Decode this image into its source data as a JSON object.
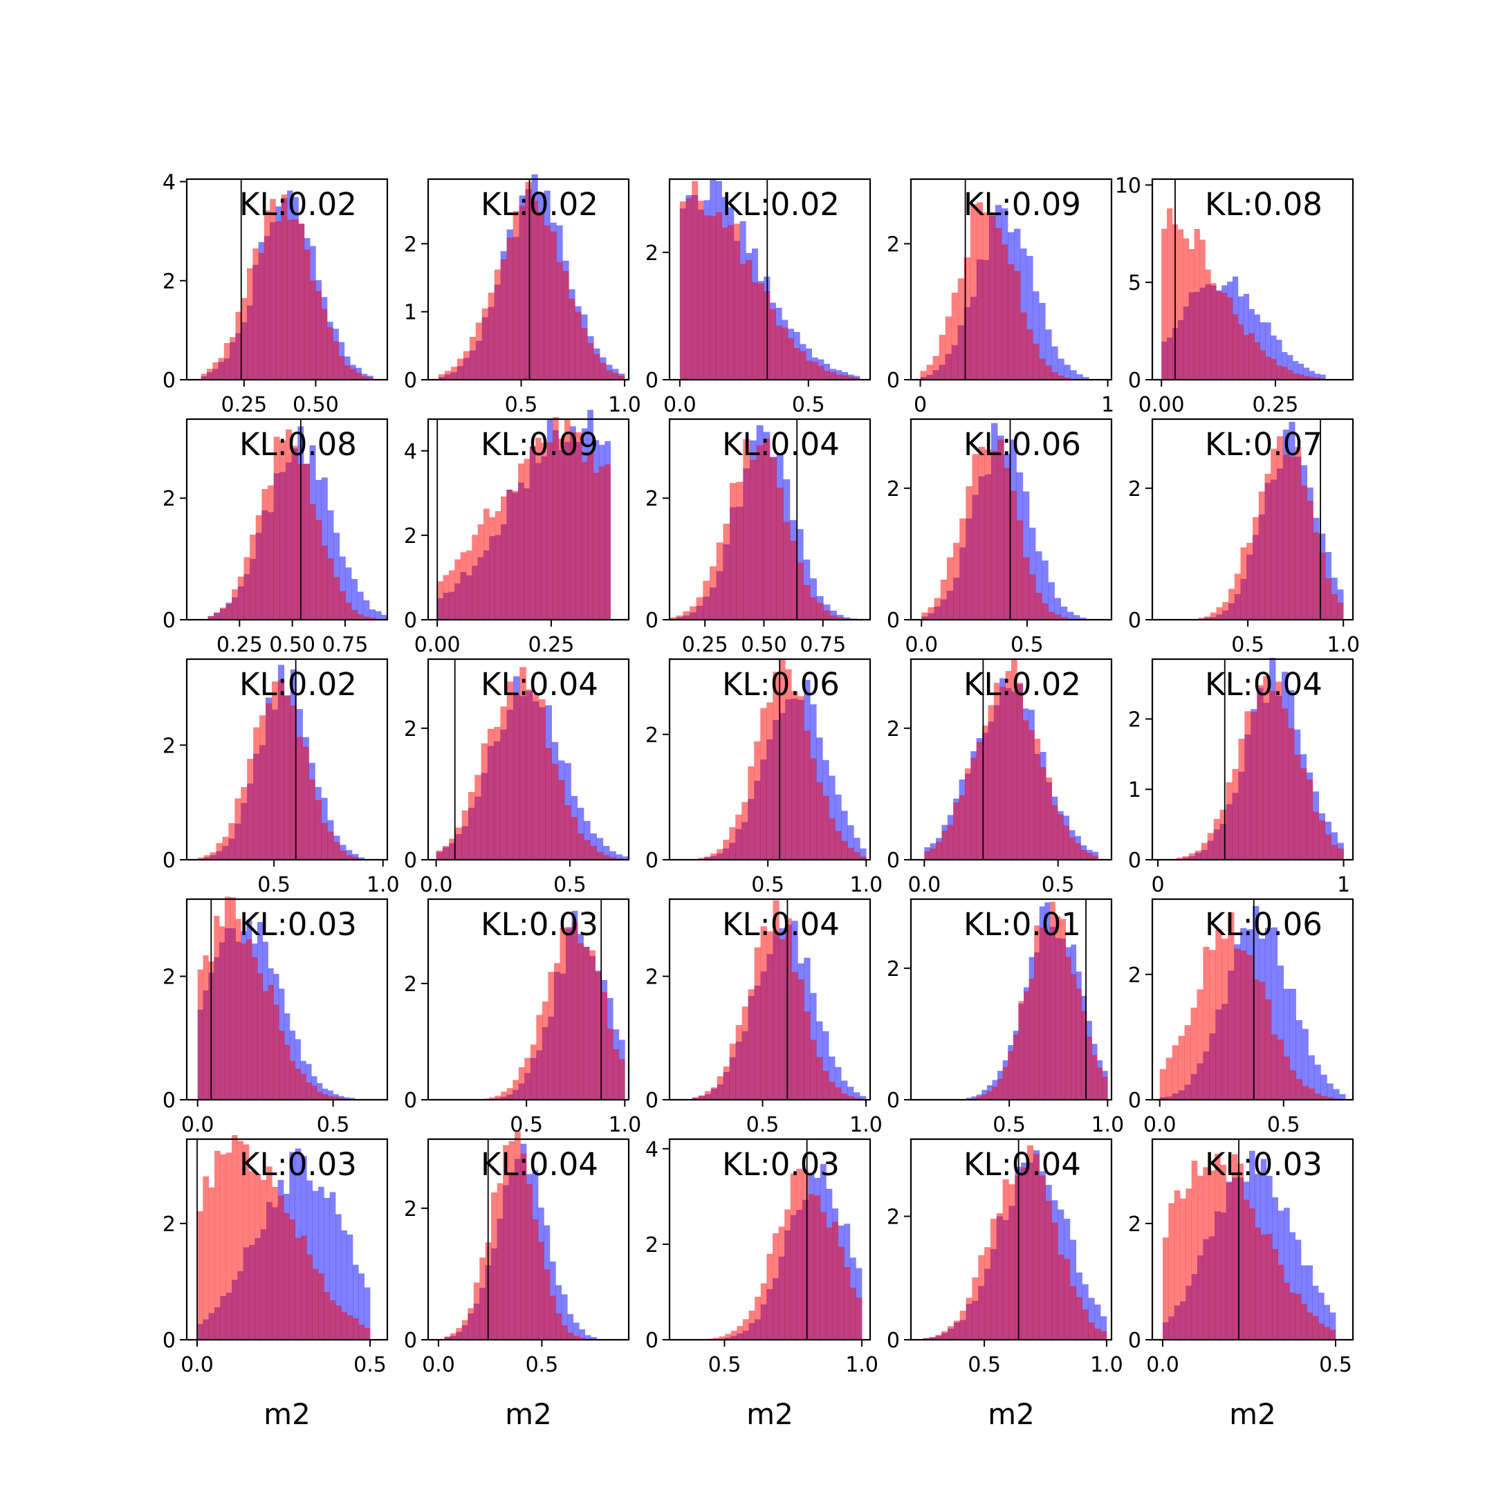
{
  "colors": {
    "blue": "#0000ff",
    "red": "#ff0000",
    "axis": "#000000"
  },
  "bar_opacity": 0.5,
  "chart_data": [
    {
      "type": "histogram",
      "xlabel": "",
      "annotation": "KL:0.02",
      "xlim": [
        0.05,
        0.75
      ],
      "ylim": [
        0,
        4.05
      ],
      "xticks": [
        0.25,
        0.5
      ],
      "xtick_labels": [
        "0.25",
        "0.50"
      ],
      "yticks": [
        0,
        2,
        4
      ],
      "ytick_labels": [
        "0",
        "2",
        "4"
      ],
      "vline": 0.24,
      "dist_blue": {
        "mu": 0.4,
        "sd": 0.105,
        "lo": 0.1,
        "hi": 0.7,
        "peak": 3.6
      },
      "dist_red": {
        "mu": 0.38,
        "sd": 0.105,
        "lo": 0.1,
        "hi": 0.7,
        "peak": 3.6
      }
    },
    {
      "type": "histogram",
      "xlabel": "",
      "annotation": "KL:0.02",
      "xlim": [
        0.05,
        1.02
      ],
      "ylim": [
        0,
        2.95
      ],
      "xticks": [
        0.5,
        1.0
      ],
      "xtick_labels": [
        "0.5",
        "1.0"
      ],
      "yticks": [
        0,
        1,
        2
      ],
      "ytick_labels": [
        "0",
        "1",
        "2"
      ],
      "vline": 0.54,
      "dist_blue": {
        "mu": 0.57,
        "sd": 0.16,
        "lo": 0.1,
        "hi": 1.0,
        "peak": 2.7
      },
      "dist_red": {
        "mu": 0.54,
        "sd": 0.16,
        "lo": 0.1,
        "hi": 1.0,
        "peak": 2.7
      }
    },
    {
      "type": "histogram",
      "xlabel": "",
      "annotation": "KL:0.02",
      "xlim": [
        -0.04,
        0.74
      ],
      "ylim": [
        0,
        3.15
      ],
      "xticks": [
        0.0,
        0.5
      ],
      "xtick_labels": [
        "0.0",
        "0.5"
      ],
      "yticks": [
        0,
        2
      ],
      "ytick_labels": [
        "0",
        "2"
      ],
      "vline": 0.34,
      "dist_blue": {
        "mu": 0.08,
        "sd": 0.22,
        "lo": 0.0,
        "hi": 0.7,
        "peak": 2.95
      },
      "dist_red": {
        "mu": 0.06,
        "sd": 0.21,
        "lo": 0.0,
        "hi": 0.7,
        "peak": 3.0
      }
    },
    {
      "type": "histogram",
      "xlabel": "",
      "annotation": "KL:0.09",
      "xlim": [
        -0.05,
        1.02
      ],
      "ylim": [
        0,
        2.95
      ],
      "xticks": [
        0,
        1
      ],
      "xtick_labels": [
        "0",
        "1"
      ],
      "yticks": [
        0,
        2
      ],
      "ytick_labels": [
        "0",
        "2"
      ],
      "vline": 0.24,
      "dist_blue": {
        "mu": 0.45,
        "sd": 0.15,
        "lo": 0.0,
        "hi": 1.0,
        "peak": 2.5
      },
      "dist_red": {
        "mu": 0.36,
        "sd": 0.14,
        "lo": 0.0,
        "hi": 1.0,
        "peak": 2.75
      }
    },
    {
      "type": "histogram",
      "xlabel": "",
      "annotation": "KL:0.08",
      "xlim": [
        -0.02,
        0.42
      ],
      "ylim": [
        0,
        10.3
      ],
      "xticks": [
        0.0,
        0.25
      ],
      "xtick_labels": [
        "0.00",
        "0.25"
      ],
      "yticks": [
        0,
        5,
        10
      ],
      "ytick_labels": [
        "0",
        "5",
        "10"
      ],
      "vline": 0.03,
      "dist_blue": {
        "mu": 0.13,
        "sd": 0.09,
        "lo": 0.0,
        "hi": 0.36,
        "peak": 5.2
      },
      "dist_red": {
        "mu": 0.02,
        "sd": 0.11,
        "lo": 0.0,
        "hi": 0.36,
        "peak": 8.0
      }
    },
    {
      "type": "histogram",
      "xlabel": "",
      "annotation": "KL:0.08",
      "xlim": [
        0.0,
        0.95
      ],
      "ylim": [
        0,
        3.3
      ],
      "xticks": [
        0.25,
        0.5,
        0.75
      ],
      "xtick_labels": [
        "0.25",
        "0.50",
        "0.75"
      ],
      "yticks": [
        0,
        2
      ],
      "ytick_labels": [
        "0",
        "2"
      ],
      "vline": 0.54,
      "dist_blue": {
        "mu": 0.53,
        "sd": 0.15,
        "lo": 0.1,
        "hi": 0.95,
        "peak": 2.95
      },
      "dist_red": {
        "mu": 0.48,
        "sd": 0.13,
        "lo": 0.1,
        "hi": 0.95,
        "peak": 3.0
      }
    },
    {
      "type": "histogram",
      "xlabel": "",
      "annotation": "KL:0.09",
      "xlim": [
        -0.02,
        0.42
      ],
      "ylim": [
        0,
        4.75
      ],
      "xticks": [
        0.0,
        0.25
      ],
      "xtick_labels": [
        "0.00",
        "0.25"
      ],
      "yticks": [
        0,
        2,
        4
      ],
      "ytick_labels": [
        "0",
        "2",
        "4"
      ],
      "vline": 0.0,
      "dist_blue": {
        "mu": 0.3,
        "sd": 0.14,
        "lo": 0.0,
        "hi": 0.38,
        "peak": 4.6
      },
      "dist_red": {
        "mu": 0.27,
        "sd": 0.15,
        "lo": 0.0,
        "hi": 0.38,
        "peak": 4.3
      }
    },
    {
      "type": "histogram",
      "xlabel": "",
      "annotation": "KL:0.04",
      "xlim": [
        0.1,
        0.95
      ],
      "ylim": [
        0,
        3.3
      ],
      "xticks": [
        0.25,
        0.5,
        0.75
      ],
      "xtick_labels": [
        "0.25",
        "0.50",
        "0.75"
      ],
      "yticks": [
        0,
        2
      ],
      "ytick_labels": [
        "0",
        "2"
      ],
      "vline": 0.64,
      "dist_blue": {
        "mu": 0.5,
        "sd": 0.12,
        "lo": 0.1,
        "hi": 0.95,
        "peak": 3.0
      },
      "dist_red": {
        "mu": 0.47,
        "sd": 0.12,
        "lo": 0.1,
        "hi": 0.95,
        "peak": 3.0
      }
    },
    {
      "type": "histogram",
      "xlabel": "",
      "annotation": "KL:0.06",
      "xlim": [
        -0.05,
        0.9
      ],
      "ylim": [
        0,
        3.05
      ],
      "xticks": [
        0.0,
        0.5
      ],
      "xtick_labels": [
        "0.0",
        "0.5"
      ],
      "yticks": [
        0,
        2
      ],
      "ytick_labels": [
        "0",
        "2"
      ],
      "vline": 0.42,
      "dist_blue": {
        "mu": 0.38,
        "sd": 0.13,
        "lo": 0.0,
        "hi": 0.9,
        "peak": 2.8
      },
      "dist_red": {
        "mu": 0.32,
        "sd": 0.12,
        "lo": 0.0,
        "hi": 0.9,
        "peak": 2.85
      }
    },
    {
      "type": "histogram",
      "xlabel": "",
      "annotation": "KL:0.07",
      "xlim": [
        0.0,
        1.05
      ],
      "ylim": [
        0,
        3.05
      ],
      "xticks": [
        0.5,
        1.0
      ],
      "xtick_labels": [
        "0.5",
        "1.0"
      ],
      "yticks": [
        0,
        2
      ],
      "ytick_labels": [
        "0",
        "2"
      ],
      "vline": 0.88,
      "dist_blue": {
        "mu": 0.72,
        "sd": 0.14,
        "lo": 0.05,
        "hi": 1.0,
        "peak": 2.8
      },
      "dist_red": {
        "mu": 0.68,
        "sd": 0.14,
        "lo": 0.05,
        "hi": 1.0,
        "peak": 2.8
      }
    },
    {
      "type": "histogram",
      "xlabel": "",
      "annotation": "KL:0.02",
      "xlim": [
        0.1,
        1.02
      ],
      "ylim": [
        0,
        3.5
      ],
      "xticks": [
        0.5,
        1.0
      ],
      "xtick_labels": [
        "0.5",
        "1.0"
      ],
      "yticks": [
        0,
        2
      ],
      "ytick_labels": [
        "0",
        "2"
      ],
      "vline": 0.6,
      "dist_blue": {
        "mu": 0.55,
        "sd": 0.12,
        "lo": 0.15,
        "hi": 1.0,
        "peak": 3.2
      },
      "dist_red": {
        "mu": 0.52,
        "sd": 0.12,
        "lo": 0.15,
        "hi": 1.0,
        "peak": 3.3
      }
    },
    {
      "type": "histogram",
      "xlabel": "",
      "annotation": "KL:0.04",
      "xlim": [
        -0.03,
        0.72
      ],
      "ylim": [
        0,
        3.05
      ],
      "xticks": [
        0.0,
        0.5
      ],
      "xtick_labels": [
        "0.0",
        "0.5"
      ],
      "yticks": [
        0,
        2
      ],
      "ytick_labels": [
        "0",
        "2"
      ],
      "vline": 0.07,
      "dist_blue": {
        "mu": 0.34,
        "sd": 0.13,
        "lo": 0.0,
        "hi": 0.72,
        "peak": 2.75
      },
      "dist_red": {
        "mu": 0.31,
        "sd": 0.12,
        "lo": 0.0,
        "hi": 0.72,
        "peak": 2.85
      }
    },
    {
      "type": "histogram",
      "xlabel": "",
      "annotation": "KL:0.06",
      "xlim": [
        0.0,
        1.02
      ],
      "ylim": [
        0,
        3.2
      ],
      "xticks": [
        0.5,
        1.0
      ],
      "xtick_labels": [
        "0.5",
        "1.0"
      ],
      "yticks": [
        0,
        2
      ],
      "ytick_labels": [
        "0",
        "2"
      ],
      "vline": 0.56,
      "dist_blue": {
        "mu": 0.64,
        "sd": 0.15,
        "lo": 0.05,
        "hi": 1.0,
        "peak": 2.9
      },
      "dist_red": {
        "mu": 0.59,
        "sd": 0.14,
        "lo": 0.05,
        "hi": 1.0,
        "peak": 3.0
      }
    },
    {
      "type": "histogram",
      "xlabel": "",
      "annotation": "KL:0.02",
      "xlim": [
        -0.05,
        0.7
      ],
      "ylim": [
        0,
        3.05
      ],
      "xticks": [
        0.0,
        0.5
      ],
      "xtick_labels": [
        "0.0",
        "0.5"
      ],
      "yticks": [
        0,
        2
      ],
      "ytick_labels": [
        "0",
        "2"
      ],
      "vline": 0.22,
      "dist_blue": {
        "mu": 0.31,
        "sd": 0.13,
        "lo": 0.0,
        "hi": 0.65,
        "peak": 2.6
      },
      "dist_red": {
        "mu": 0.31,
        "sd": 0.12,
        "lo": 0.0,
        "hi": 0.65,
        "peak": 2.8
      }
    },
    {
      "type": "histogram",
      "xlabel": "",
      "annotation": "KL:0.04",
      "xlim": [
        -0.03,
        1.05
      ],
      "ylim": [
        0,
        2.85
      ],
      "xticks": [
        0,
        1
      ],
      "xtick_labels": [
        "0",
        "1"
      ],
      "yticks": [
        0,
        1,
        2
      ],
      "ytick_labels": [
        "0",
        "1",
        "2"
      ],
      "vline": 0.36,
      "dist_blue": {
        "mu": 0.63,
        "sd": 0.16,
        "lo": 0.0,
        "hi": 1.0,
        "peak": 2.6
      },
      "dist_red": {
        "mu": 0.6,
        "sd": 0.16,
        "lo": 0.0,
        "hi": 1.0,
        "peak": 2.6
      }
    },
    {
      "type": "histogram",
      "xlabel": "",
      "annotation": "KL:0.03",
      "xlim": [
        -0.04,
        0.7
      ],
      "ylim": [
        0,
        3.25
      ],
      "xticks": [
        0.0,
        0.5
      ],
      "xtick_labels": [
        "0.0",
        "0.5"
      ],
      "yticks": [
        0,
        2
      ],
      "ytick_labels": [
        "0",
        "2"
      ],
      "vline": 0.05,
      "dist_blue": {
        "mu": 0.17,
        "sd": 0.13,
        "lo": 0.0,
        "hi": 0.6,
        "peak": 2.9
      },
      "dist_red": {
        "mu": 0.13,
        "sd": 0.13,
        "lo": 0.0,
        "hi": 0.6,
        "peak": 3.0
      }
    },
    {
      "type": "histogram",
      "xlabel": "",
      "annotation": "KL:0.03",
      "xlim": [
        0.0,
        1.02
      ],
      "ylim": [
        0,
        3.45
      ],
      "xticks": [
        0.5,
        1.0
      ],
      "xtick_labels": [
        "0.5",
        "1.0"
      ],
      "yticks": [
        0,
        2
      ],
      "ytick_labels": [
        "0",
        "2"
      ],
      "vline": 0.88,
      "dist_blue": {
        "mu": 0.78,
        "sd": 0.14,
        "lo": 0.1,
        "hi": 1.0,
        "peak": 3.0
      },
      "dist_red": {
        "mu": 0.74,
        "sd": 0.14,
        "lo": 0.1,
        "hi": 1.0,
        "peak": 3.1
      }
    },
    {
      "type": "histogram",
      "xlabel": "",
      "annotation": "KL:0.04",
      "xlim": [
        0.05,
        1.02
      ],
      "ylim": [
        0,
        3.25
      ],
      "xticks": [
        0.5,
        1.0
      ],
      "xtick_labels": [
        "0.5",
        "1.0"
      ],
      "yticks": [
        0,
        2
      ],
      "ytick_labels": [
        "0",
        "2"
      ],
      "vline": 0.62,
      "dist_blue": {
        "mu": 0.6,
        "sd": 0.14,
        "lo": 0.1,
        "hi": 1.0,
        "peak": 2.9
      },
      "dist_red": {
        "mu": 0.56,
        "sd": 0.13,
        "lo": 0.1,
        "hi": 1.0,
        "peak": 3.0
      }
    },
    {
      "type": "histogram",
      "xlabel": "",
      "annotation": "KL:0.01",
      "xlim": [
        0.0,
        1.02
      ],
      "ylim": [
        0,
        3.05
      ],
      "xticks": [
        0.5,
        1.0
      ],
      "xtick_labels": [
        "0.5",
        "1.0"
      ],
      "yticks": [
        0,
        2
      ],
      "ytick_labels": [
        "0",
        "2"
      ],
      "vline": 0.89,
      "dist_blue": {
        "mu": 0.72,
        "sd": 0.14,
        "lo": 0.2,
        "hi": 1.0,
        "peak": 2.85
      },
      "dist_red": {
        "mu": 0.72,
        "sd": 0.13,
        "lo": 0.2,
        "hi": 1.0,
        "peak": 2.9
      }
    },
    {
      "type": "histogram",
      "xlabel": "",
      "annotation": "KL:0.06",
      "xlim": [
        -0.03,
        0.78
      ],
      "ylim": [
        0,
        3.2
      ],
      "xticks": [
        0.0,
        0.5
      ],
      "xtick_labels": [
        "0.0",
        "0.5"
      ],
      "yticks": [
        0,
        2
      ],
      "ytick_labels": [
        "0",
        "2"
      ],
      "vline": 0.38,
      "dist_blue": {
        "mu": 0.4,
        "sd": 0.13,
        "lo": 0.0,
        "hi": 0.75,
        "peak": 2.9
      },
      "dist_red": {
        "mu": 0.28,
        "sd": 0.14,
        "lo": 0.0,
        "hi": 0.75,
        "peak": 2.75
      }
    },
    {
      "type": "histogram",
      "xlabel": "m2",
      "annotation": "KL:0.03",
      "xlim": [
        -0.03,
        0.55
      ],
      "ylim": [
        0,
        3.45
      ],
      "xticks": [
        0.0,
        0.5
      ],
      "xtick_labels": [
        "0.0",
        "0.5"
      ],
      "yticks": [
        0,
        2
      ],
      "ytick_labels": [
        "0",
        "2"
      ],
      "vline": 0.0,
      "dist_blue": {
        "mu": 0.3,
        "sd": 0.13,
        "lo": 0.0,
        "hi": 0.5,
        "peak": 3.0
      },
      "dist_red": {
        "mu": 0.12,
        "sd": 0.16,
        "lo": 0.0,
        "hi": 0.5,
        "peak": 3.2
      }
    },
    {
      "type": "histogram",
      "xlabel": "m2",
      "annotation": "KL:0.04",
      "xlim": [
        -0.05,
        0.92
      ],
      "ylim": [
        0,
        3.05
      ],
      "xticks": [
        0.0,
        0.5
      ],
      "xtick_labels": [
        "0.0",
        "0.5"
      ],
      "yticks": [
        0,
        2
      ],
      "ytick_labels": [
        "0",
        "2"
      ],
      "vline": 0.24,
      "dist_blue": {
        "mu": 0.4,
        "sd": 0.12,
        "lo": 0.0,
        "hi": 0.85,
        "peak": 2.85
      },
      "dist_red": {
        "mu": 0.36,
        "sd": 0.11,
        "lo": 0.0,
        "hi": 0.85,
        "peak": 2.95
      }
    },
    {
      "type": "histogram",
      "xlabel": "m2",
      "annotation": "KL:0.03",
      "xlim": [
        0.3,
        1.03
      ],
      "ylim": [
        0,
        4.2
      ],
      "xticks": [
        0.5,
        1.0
      ],
      "xtick_labels": [
        "0.5",
        "1.0"
      ],
      "yticks": [
        0,
        2,
        4
      ],
      "ytick_labels": [
        "0",
        "2",
        "4"
      ],
      "vline": 0.8,
      "dist_blue": {
        "mu": 0.84,
        "sd": 0.11,
        "lo": 0.35,
        "hi": 1.0,
        "peak": 3.5
      },
      "dist_red": {
        "mu": 0.8,
        "sd": 0.11,
        "lo": 0.35,
        "hi": 1.0,
        "peak": 3.5
      }
    },
    {
      "type": "histogram",
      "xlabel": "m2",
      "annotation": "KL:0.04",
      "xlim": [
        0.2,
        1.02
      ],
      "ylim": [
        0,
        3.25
      ],
      "xticks": [
        0.5,
        1.0
      ],
      "xtick_labels": [
        "0.5",
        "1.0"
      ],
      "yticks": [
        0,
        2
      ],
      "ytick_labels": [
        "0",
        "2"
      ],
      "vline": 0.64,
      "dist_blue": {
        "mu": 0.7,
        "sd": 0.14,
        "lo": 0.25,
        "hi": 1.0,
        "peak": 3.0
      },
      "dist_red": {
        "mu": 0.66,
        "sd": 0.13,
        "lo": 0.25,
        "hi": 1.0,
        "peak": 3.0
      }
    },
    {
      "type": "histogram",
      "xlabel": "m2",
      "annotation": "KL:0.03",
      "xlim": [
        -0.03,
        0.55
      ],
      "ylim": [
        0,
        3.45
      ],
      "xticks": [
        0.0,
        0.5
      ],
      "xtick_labels": [
        "0.0",
        "0.5"
      ],
      "yticks": [
        0,
        2
      ],
      "ytick_labels": [
        "0",
        "2"
      ],
      "vline": 0.22,
      "dist_blue": {
        "mu": 0.26,
        "sd": 0.12,
        "lo": 0.0,
        "hi": 0.5,
        "peak": 3.0
      },
      "dist_red": {
        "mu": 0.15,
        "sd": 0.14,
        "lo": 0.0,
        "hi": 0.5,
        "peak": 3.2
      }
    }
  ]
}
